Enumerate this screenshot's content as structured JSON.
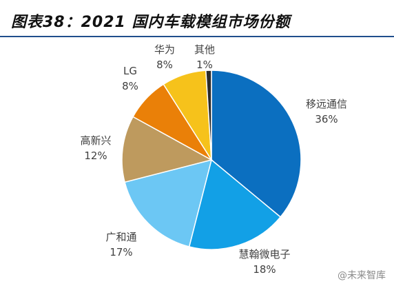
{
  "header": {
    "title": "图表38：2021 国内车载模组市场份额"
  },
  "watermark": {
    "text": "@未来智库"
  },
  "chart_data": {
    "type": "pie",
    "title": "",
    "categories": [
      "移远通信",
      "慧翰微电子",
      "广和通",
      "高新兴",
      "LG",
      "华为",
      "其他"
    ],
    "values": [
      36,
      18,
      17,
      12,
      8,
      8,
      1
    ],
    "value_labels": [
      "36%",
      "18%",
      "17%",
      "12%",
      "8%",
      "8%",
      "1%"
    ],
    "colors": [
      "#0B6FC0",
      "#12A0E6",
      "#6CC7F4",
      "#BE9A5E",
      "#EA8008",
      "#F6C21B",
      "#2B2B2B"
    ],
    "start_angle_deg": 0,
    "direction": "clockwise",
    "legend": "none",
    "labels": "outside"
  }
}
